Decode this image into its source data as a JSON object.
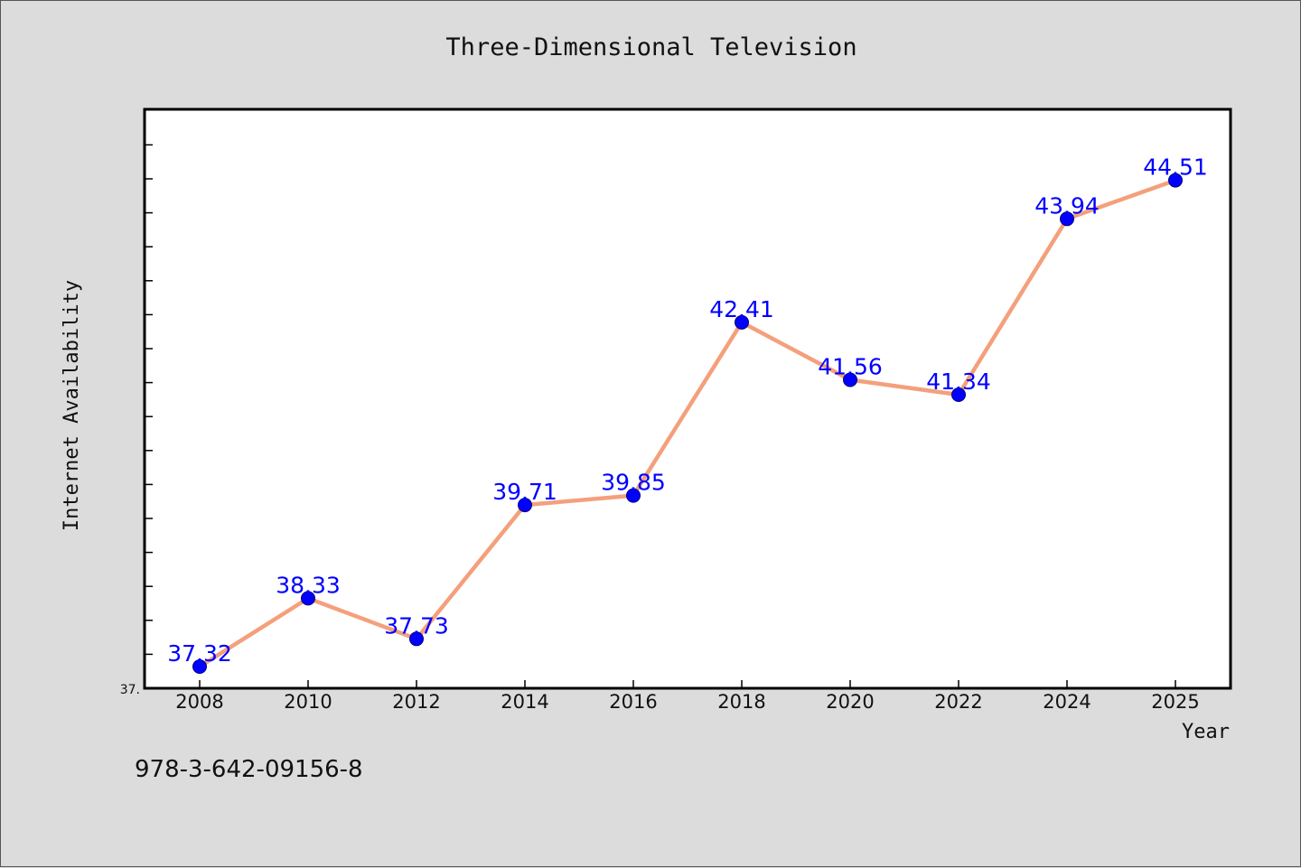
{
  "chart_data": {
    "type": "line",
    "title": "Three-Dimensional Television",
    "xlabel": "Year",
    "ylabel": "Internet Availability",
    "categories": [
      "2008",
      "2010",
      "2012",
      "2014",
      "2016",
      "2018",
      "2020",
      "2022",
      "2024",
      "2025"
    ],
    "series": [
      {
        "values": [
          37.32,
          38.33,
          37.73,
          39.71,
          39.85,
          42.41,
          41.56,
          41.34,
          43.94,
          44.51
        ],
        "data_labels": [
          "37.32",
          "38.33",
          "37.73",
          "39.71",
          "39.85",
          "42.41",
          "41.56",
          "41.34",
          "43.94",
          "44.51"
        ],
        "line_color": "#f4a07c",
        "marker_color": "#0000ff"
      }
    ],
    "ylim": [
      37.0,
      45.5
    ],
    "ytick_label": "37.",
    "grid": false
  },
  "footer": {
    "code": "978-3-642-09156-8"
  },
  "colors": {
    "background": "#dcdcdc",
    "plot_background": "#ffffff",
    "label_color": "#0000ff"
  }
}
